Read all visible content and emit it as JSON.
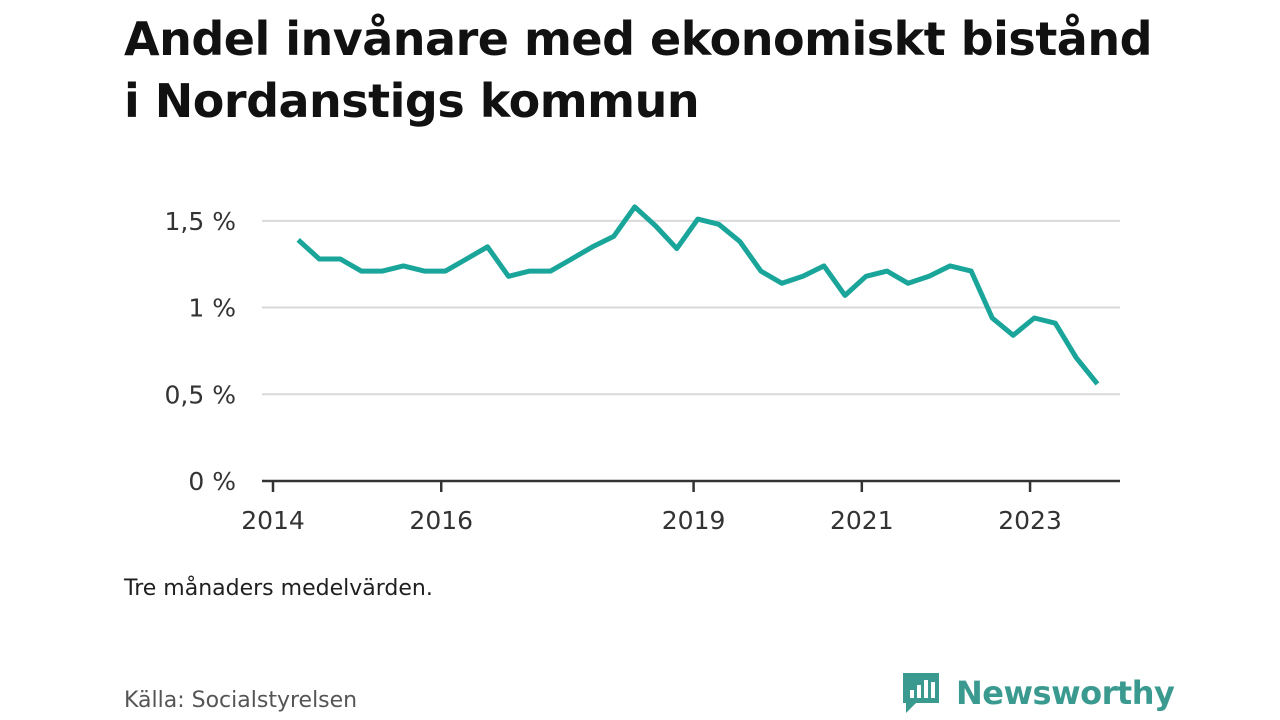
{
  "title": "Andel invånare med ekonomiskt bistånd i Nordanstigs kommun",
  "note": "Tre månaders medelvärden.",
  "source": "Källa: Socialstyrelsen",
  "brand": {
    "name": "Newsworthy",
    "icon": "newsworthy-chart-bubble-icon",
    "color": "#3a9a8f"
  },
  "chart_data": {
    "type": "line",
    "title": "",
    "xlabel": "",
    "ylabel": "",
    "x_ticks": [
      {
        "label": "2014",
        "value": 2014.0
      },
      {
        "label": "2016",
        "value": 2016.0
      },
      {
        "label": "2019",
        "value": 2019.0
      },
      {
        "label": "2021",
        "value": 2021.0
      },
      {
        "label": "2023",
        "value": 2023.0
      }
    ],
    "y_ticks": [
      {
        "label": "0 %",
        "value": 0
      },
      {
        "label": "0,5 %",
        "value": 0.5
      },
      {
        "label": "1 %",
        "value": 1.0
      },
      {
        "label": "1,5 %",
        "value": 1.5
      }
    ],
    "xlim": [
      2014.0,
      2024.2
    ],
    "ylim": [
      0,
      1.62
    ],
    "grid": true,
    "line_color": "#1aa59a",
    "series": [
      {
        "x": [
          2014.3,
          2014.55,
          2014.8,
          2015.05,
          2015.3,
          2015.55,
          2015.8,
          2016.05,
          2016.3,
          2016.55,
          2016.8,
          2017.05,
          2017.3,
          2017.55,
          2017.8,
          2018.05,
          2018.3,
          2018.55,
          2018.8,
          2019.05,
          2019.3,
          2019.55,
          2019.8,
          2020.05,
          2020.3,
          2020.55,
          2020.8,
          2021.05,
          2021.3,
          2021.55,
          2021.8,
          2022.05,
          2022.3,
          2022.55,
          2022.8,
          2023.05,
          2023.3,
          2023.55,
          2023.8
        ],
        "y": [
          1.39,
          1.28,
          1.28,
          1.21,
          1.21,
          1.24,
          1.21,
          1.21,
          1.28,
          1.35,
          1.18,
          1.21,
          1.21,
          1.28,
          1.35,
          1.41,
          1.58,
          1.47,
          1.34,
          1.51,
          1.48,
          1.38,
          1.21,
          1.14,
          1.18,
          1.24,
          1.07,
          1.18,
          1.21,
          1.14,
          1.18,
          1.24,
          1.21,
          0.94,
          0.84,
          0.94,
          0.91,
          0.71,
          0.56
        ]
      }
    ]
  }
}
